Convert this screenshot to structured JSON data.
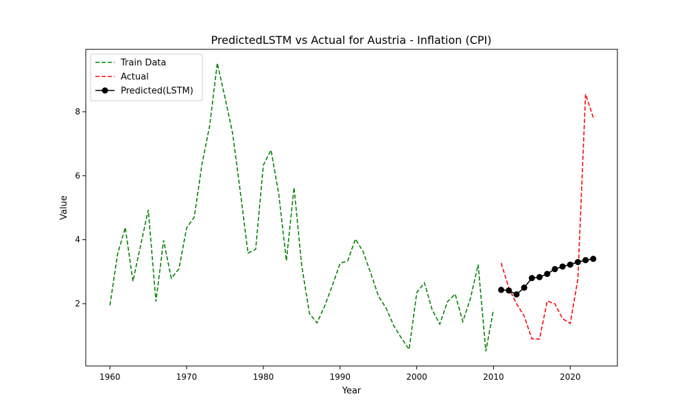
{
  "chart_data": {
    "type": "line",
    "title": "PredictedLSTM vs Actual for Austria - Inflation (CPI)",
    "xlabel": "Year",
    "ylabel": "Value",
    "xlim": [
      1956.85,
      2026.15
    ],
    "ylim": [
      0.05,
      9.95
    ],
    "x_ticks": [
      1960,
      1970,
      1980,
      1990,
      2000,
      2010,
      2020
    ],
    "y_ticks": [
      2,
      4,
      6,
      8
    ],
    "grid": false,
    "legend_position": "top-left",
    "series": [
      {
        "name": "Train Data",
        "color": "#008000",
        "line_style": "dashed",
        "marker": "none",
        "x": [
          1960,
          1961,
          1962,
          1963,
          1964,
          1965,
          1966,
          1967,
          1968,
          1969,
          1970,
          1971,
          1972,
          1973,
          1974,
          1975,
          1976,
          1977,
          1978,
          1979,
          1980,
          1981,
          1982,
          1983,
          1984,
          1985,
          1986,
          1987,
          1988,
          1989,
          1990,
          1991,
          1992,
          1993,
          1994,
          1995,
          1996,
          1997,
          1998,
          1999,
          2000,
          2001,
          2002,
          2003,
          2004,
          2005,
          2006,
          2007,
          2008,
          2009,
          2010
        ],
        "values": [
          1.95,
          3.55,
          4.38,
          2.7,
          3.82,
          4.93,
          2.07,
          3.98,
          2.79,
          3.09,
          4.37,
          4.71,
          6.36,
          7.56,
          9.52,
          8.44,
          7.32,
          5.49,
          3.58,
          3.7,
          6.33,
          6.8,
          5.44,
          3.34,
          5.63,
          3.19,
          1.7,
          1.4,
          1.93,
          2.57,
          3.26,
          3.34,
          4.02,
          3.63,
          2.95,
          2.24,
          1.86,
          1.31,
          0.92,
          0.57,
          2.35,
          2.65,
          1.81,
          1.36,
          2.06,
          2.3,
          1.44,
          2.17,
          3.22,
          0.51,
          1.81
        ]
      },
      {
        "name": "Actual",
        "color": "#ff0000",
        "line_style": "dashed",
        "marker": "none",
        "x": [
          2011,
          2012,
          2013,
          2014,
          2015,
          2016,
          2017,
          2018,
          2019,
          2020,
          2021,
          2022,
          2023
        ],
        "values": [
          3.27,
          2.49,
          2.0,
          1.61,
          0.9,
          0.89,
          2.08,
          2.0,
          1.53,
          1.38,
          2.77,
          8.55,
          7.82
        ]
      },
      {
        "name": "Predicted(LSTM)",
        "color": "#000000",
        "line_style": "solid",
        "marker": "circle",
        "x": [
          2011,
          2012,
          2013,
          2014,
          2015,
          2016,
          2017,
          2018,
          2019,
          2020,
          2021,
          2022,
          2023
        ],
        "values": [
          2.43,
          2.41,
          2.29,
          2.5,
          2.8,
          2.83,
          2.93,
          3.08,
          3.16,
          3.22,
          3.3,
          3.36,
          3.4
        ]
      }
    ]
  }
}
